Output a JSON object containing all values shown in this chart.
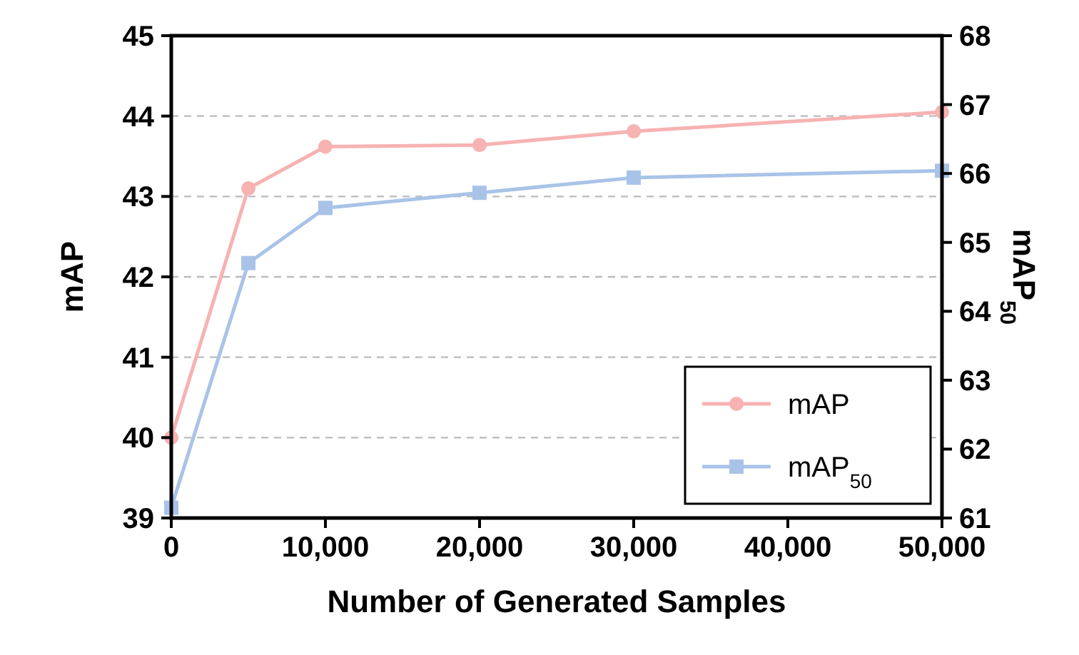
{
  "chart_data": {
    "type": "line",
    "xlabel": "Number of Generated Samples",
    "ylabel": "mAP",
    "y2label": "mAP$_{50}$",
    "x": [
      0,
      5000,
      10000,
      20000,
      30000,
      50000
    ],
    "xlim": [
      0,
      50000
    ],
    "xticks": [
      0,
      {
        "value": 10000,
        "label": "10,000"
      },
      {
        "value": 20000,
        "label": "20,000"
      },
      {
        "value": 30000,
        "label": "30,000"
      },
      {
        "value": 40000,
        "label": "40,000"
      },
      {
        "value": 50000,
        "label": "50,000"
      }
    ],
    "ylim": [
      39,
      45
    ],
    "yticks": [
      39,
      40,
      41,
      42,
      43,
      44,
      45
    ],
    "y2lim": [
      61,
      68
    ],
    "y2ticks": [
      61,
      62,
      63,
      64,
      65,
      66,
      67,
      68
    ],
    "grid": "y",
    "legend": "bottom right",
    "line_style": "solid",
    "series": [
      {
        "name": "mAP",
        "color": "#f7b2b2",
        "marker": "circle",
        "values": [
          40.0,
          43.1,
          43.62,
          43.64,
          43.81,
          44.05
        ]
      },
      {
        "name": "mAP$_{50}$",
        "color": "#a9c3e8",
        "marker": "square",
        "axis": "y2",
        "values": [
          61.15,
          64.7,
          65.5,
          65.72,
          65.94,
          66.04
        ]
      }
    ]
  }
}
